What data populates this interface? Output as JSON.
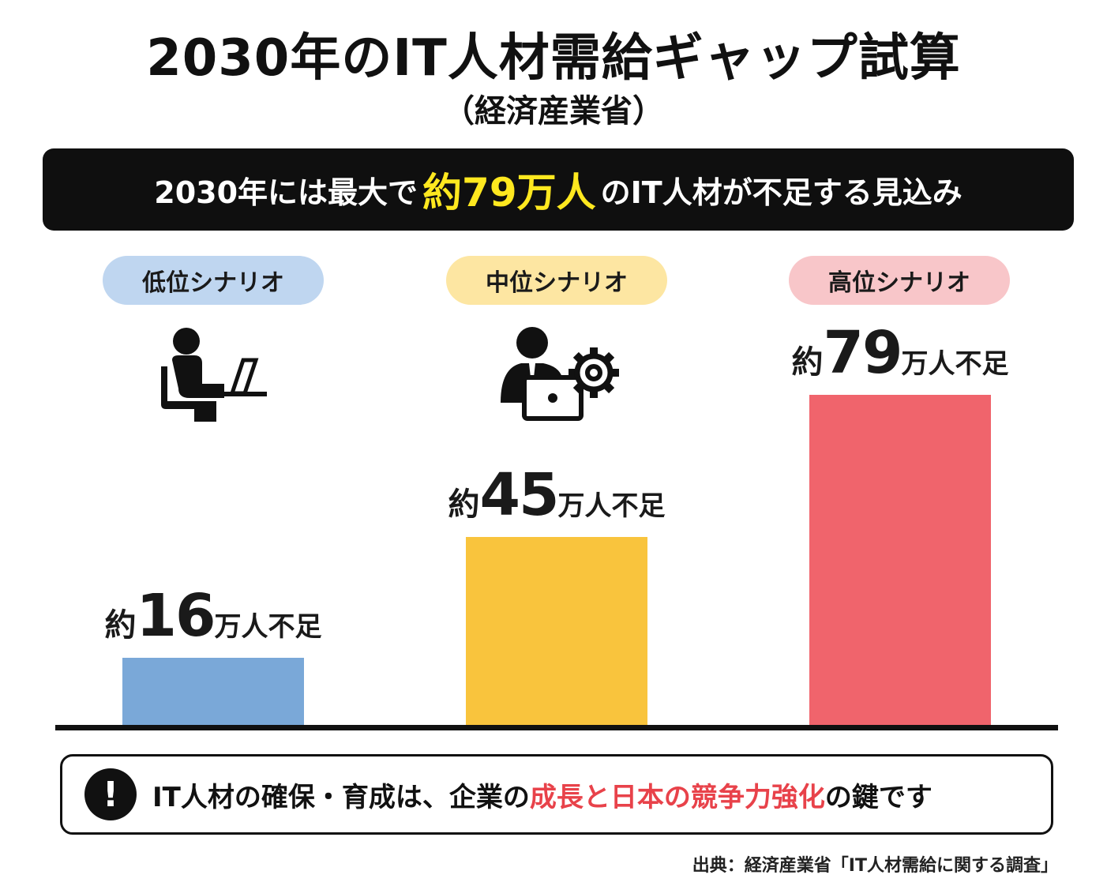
{
  "title": "2030年のIT人材需給ギャップ試算",
  "subtitle": "（経済産業省）",
  "banner": {
    "prefix": "2030年には最大で",
    "highlight": "約79万人",
    "suffix": "のIT人材が不足する見込み",
    "highlight_color": "#ffe81f"
  },
  "chart_data": {
    "type": "bar",
    "categories": [
      "低位シナリオ",
      "中位シナリオ",
      "高位シナリオ"
    ],
    "values": [
      16,
      45,
      79
    ],
    "value_labels": [
      {
        "prefix": "約",
        "number": "16",
        "suffix": "万人不足"
      },
      {
        "prefix": "約",
        "number": "45",
        "suffix": "万人不足"
      },
      {
        "prefix": "約",
        "number": "79",
        "suffix": "万人不足"
      }
    ],
    "colors": [
      "#7aa8d8",
      "#f9c43d",
      "#f0646c"
    ],
    "pill_colors": [
      "#bfd6f0",
      "#fde6a2",
      "#f8c6c9"
    ],
    "grid": false,
    "legend": "none"
  },
  "icons": [
    "person-at-laptop-icon",
    "businessman-gear-laptop-icon"
  ],
  "note": {
    "icon": "exclamation-icon",
    "part1": "IT人材の確保・育成は、企業の",
    "highlight": "成長と日本の競争力強化",
    "part2": "の鍵です",
    "highlight_color": "#e8424a"
  },
  "source": "出典：経済産業省「IT人材需給に関する調査」"
}
